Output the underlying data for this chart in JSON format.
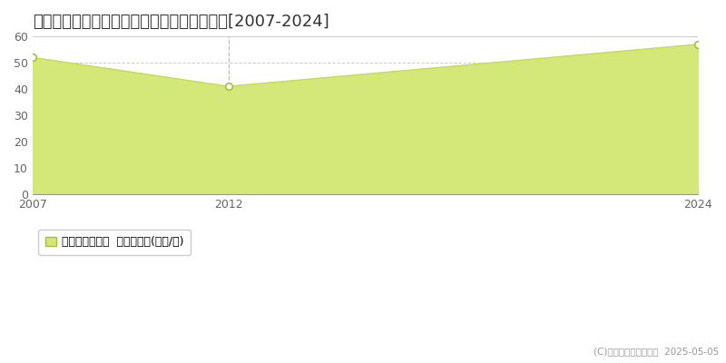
{
  "title": "名古屋市守山区白沢町　マンション価格推移[2007-2024]",
  "x_values": [
    2007,
    2012,
    2024
  ],
  "y_values": [
    52,
    41,
    57
  ],
  "xlim": [
    2007,
    2024
  ],
  "ylim": [
    0,
    60
  ],
  "yticks": [
    0,
    10,
    20,
    30,
    40,
    50,
    60
  ],
  "xticks": [
    2007,
    2012,
    2024
  ],
  "line_color": "#c8dc50",
  "fill_color": "#d4e87a",
  "marker_facecolor": "#ffffff",
  "marker_edge_color": "#a8c030",
  "grid_color": "#cccccc",
  "bg_color": "#ffffff",
  "plot_bg_color": "#ffffff",
  "legend_label": "マンション価格  平均坪単価(万円/坪)",
  "copyright_text": "(C)土地価格ドットコム  2025-05-05",
  "vline_x": 2012,
  "vline_color": "#bbbbbb",
  "title_fontsize": 13,
  "axis_fontsize": 9,
  "legend_fontsize": 9,
  "top_border_color": "#cccccc"
}
